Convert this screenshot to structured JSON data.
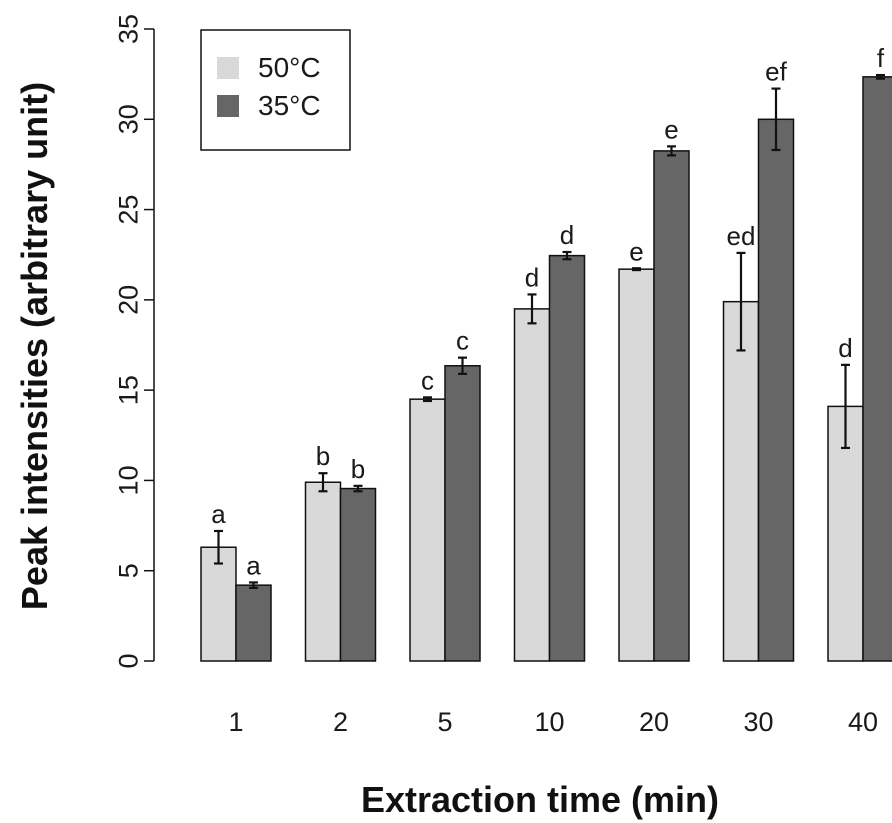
{
  "chart_data": {
    "type": "bar",
    "title": "",
    "xlabel": "Extraction time (min)",
    "ylabel": "Peak intensities (arbitrary unit)",
    "ylim": [
      0,
      35
    ],
    "yticks": [
      0,
      5,
      10,
      15,
      20,
      25,
      30,
      35
    ],
    "categories": [
      "1",
      "2",
      "5",
      "10",
      "20",
      "30",
      "40"
    ],
    "grid": false,
    "legend_position": "top-left",
    "series": [
      {
        "name": "50°C",
        "color": "#d9d9d9",
        "values": [
          6.3,
          9.9,
          14.5,
          19.5,
          21.7,
          19.9,
          14.1
        ],
        "errors": [
          0.9,
          0.5,
          0.1,
          0.8,
          0.05,
          2.7,
          2.3
        ],
        "letters": [
          "a",
          "b",
          "c",
          "d",
          "e",
          "ed",
          "d"
        ]
      },
      {
        "name": "35°C",
        "color": "#666666",
        "values": [
          4.2,
          9.55,
          16.35,
          22.45,
          28.25,
          30.0,
          32.35
        ],
        "errors": [
          0.15,
          0.15,
          0.45,
          0.2,
          0.25,
          1.7,
          0.1
        ],
        "letters": [
          "a",
          "b",
          "c",
          "d",
          "e",
          "ef",
          "f"
        ]
      }
    ]
  }
}
